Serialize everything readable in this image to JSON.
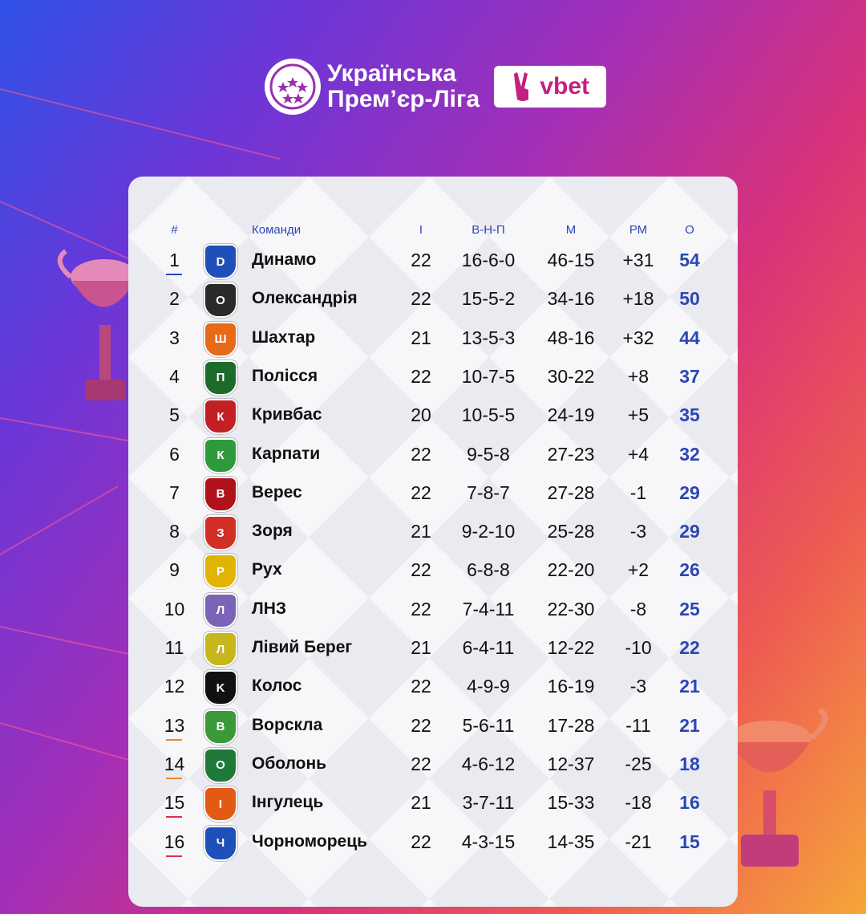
{
  "header": {
    "league_line1": "Українська",
    "league_line2": "Прем’єр-Ліга",
    "sponsor": "vbet"
  },
  "columns": {
    "pos": "#",
    "team": "Команди",
    "played": "І",
    "wdl": "В-Н-П",
    "goals": "М",
    "gd": "РМ",
    "pts": "О"
  },
  "rows": [
    {
      "pos": "1",
      "team": "Динамо",
      "played": "22",
      "wdl": "16-6-0",
      "goals": "46-15",
      "gd": "+31",
      "pts": "54",
      "crest_color": "#1f4fb8",
      "crest_icon": "dynamo-crest-icon",
      "crest_letter": "D",
      "mark": "#2c46b5"
    },
    {
      "pos": "2",
      "team": "Олександрія",
      "played": "22",
      "wdl": "15-5-2",
      "goals": "34-16",
      "gd": "+18",
      "pts": "50",
      "crest_color": "#2a2a2a",
      "crest_icon": "oleksandria-crest-icon",
      "crest_letter": "O",
      "mark": ""
    },
    {
      "pos": "3",
      "team": "Шахтар",
      "played": "21",
      "wdl": "13-5-3",
      "goals": "48-16",
      "gd": "+32",
      "pts": "44",
      "crest_color": "#e66a17",
      "crest_icon": "shakhtar-crest-icon",
      "crest_letter": "Ш",
      "mark": ""
    },
    {
      "pos": "4",
      "team": "Полісся",
      "played": "22",
      "wdl": "10-7-5",
      "goals": "30-22",
      "gd": "+8",
      "pts": "37",
      "crest_color": "#1d6b2b",
      "crest_icon": "polissia-crest-icon",
      "crest_letter": "П",
      "mark": ""
    },
    {
      "pos": "5",
      "team": "Кривбас",
      "played": "20",
      "wdl": "10-5-5",
      "goals": "24-19",
      "gd": "+5",
      "pts": "35",
      "crest_color": "#c22024",
      "crest_icon": "kryvbas-crest-icon",
      "crest_letter": "К",
      "mark": ""
    },
    {
      "pos": "6",
      "team": "Карпати",
      "played": "22",
      "wdl": "9-5-8",
      "goals": "27-23",
      "gd": "+4",
      "pts": "32",
      "crest_color": "#2f9a3c",
      "crest_icon": "karpaty-crest-icon",
      "crest_letter": "К",
      "mark": ""
    },
    {
      "pos": "7",
      "team": "Верес",
      "played": "22",
      "wdl": "7-8-7",
      "goals": "27-28",
      "gd": "-1",
      "pts": "29",
      "crest_color": "#b0121b",
      "crest_icon": "veres-crest-icon",
      "crest_letter": "В",
      "mark": ""
    },
    {
      "pos": "8",
      "team": "Зоря",
      "played": "21",
      "wdl": "9-2-10",
      "goals": "25-28",
      "gd": "-3",
      "pts": "29",
      "crest_color": "#d22f27",
      "crest_icon": "zorya-crest-icon",
      "crest_letter": "З",
      "mark": ""
    },
    {
      "pos": "9",
      "team": "Рух",
      "played": "22",
      "wdl": "6-8-8",
      "goals": "22-20",
      "gd": "+2",
      "pts": "26",
      "crest_color": "#e0b400",
      "crest_icon": "rukh-crest-icon",
      "crest_letter": "Р",
      "mark": ""
    },
    {
      "pos": "10",
      "team": "ЛНЗ",
      "played": "22",
      "wdl": "7-4-11",
      "goals": "22-30",
      "gd": "-8",
      "pts": "25",
      "crest_color": "#7b63b8",
      "crest_icon": "lnz-crest-icon",
      "crest_letter": "Л",
      "mark": ""
    },
    {
      "pos": "11",
      "team": "Лівий Берег",
      "played": "21",
      "wdl": "6-4-11",
      "goals": "12-22",
      "gd": "-10",
      "pts": "22",
      "crest_color": "#c7b61c",
      "crest_icon": "livyi-bereh-crest-icon",
      "crest_letter": "Л",
      "mark": ""
    },
    {
      "pos": "12",
      "team": "Колос",
      "played": "22",
      "wdl": "4-9-9",
      "goals": "16-19",
      "gd": "-3",
      "pts": "21",
      "crest_color": "#111111",
      "crest_icon": "kolos-crest-icon",
      "crest_letter": "K",
      "mark": ""
    },
    {
      "pos": "13",
      "team": "Ворскла",
      "played": "22",
      "wdl": "5-6-11",
      "goals": "17-28",
      "gd": "-11",
      "pts": "21",
      "crest_color": "#3a9a3a",
      "crest_icon": "vorskla-crest-icon",
      "crest_letter": "В",
      "mark": "#e88a2a"
    },
    {
      "pos": "14",
      "team": "Оболонь",
      "played": "22",
      "wdl": "4-6-12",
      "goals": "12-37",
      "gd": "-25",
      "pts": "18",
      "crest_color": "#1f7a3a",
      "crest_icon": "obolon-crest-icon",
      "crest_letter": "О",
      "mark": "#e88a2a"
    },
    {
      "pos": "15",
      "team": "Інгулець",
      "played": "21",
      "wdl": "3-7-11",
      "goals": "15-33",
      "gd": "-18",
      "pts": "16",
      "crest_color": "#e35a14",
      "crest_icon": "inhulets-crest-icon",
      "crest_letter": "І",
      "mark": "#d8324a"
    },
    {
      "pos": "16",
      "team": "Чорноморець",
      "played": "22",
      "wdl": "4-3-15",
      "goals": "14-35",
      "gd": "-21",
      "pts": "15",
      "crest_color": "#1f4fb8",
      "crest_icon": "chornomorets-crest-icon",
      "crest_letter": "Ч",
      "mark": "#d8324a"
    }
  ]
}
